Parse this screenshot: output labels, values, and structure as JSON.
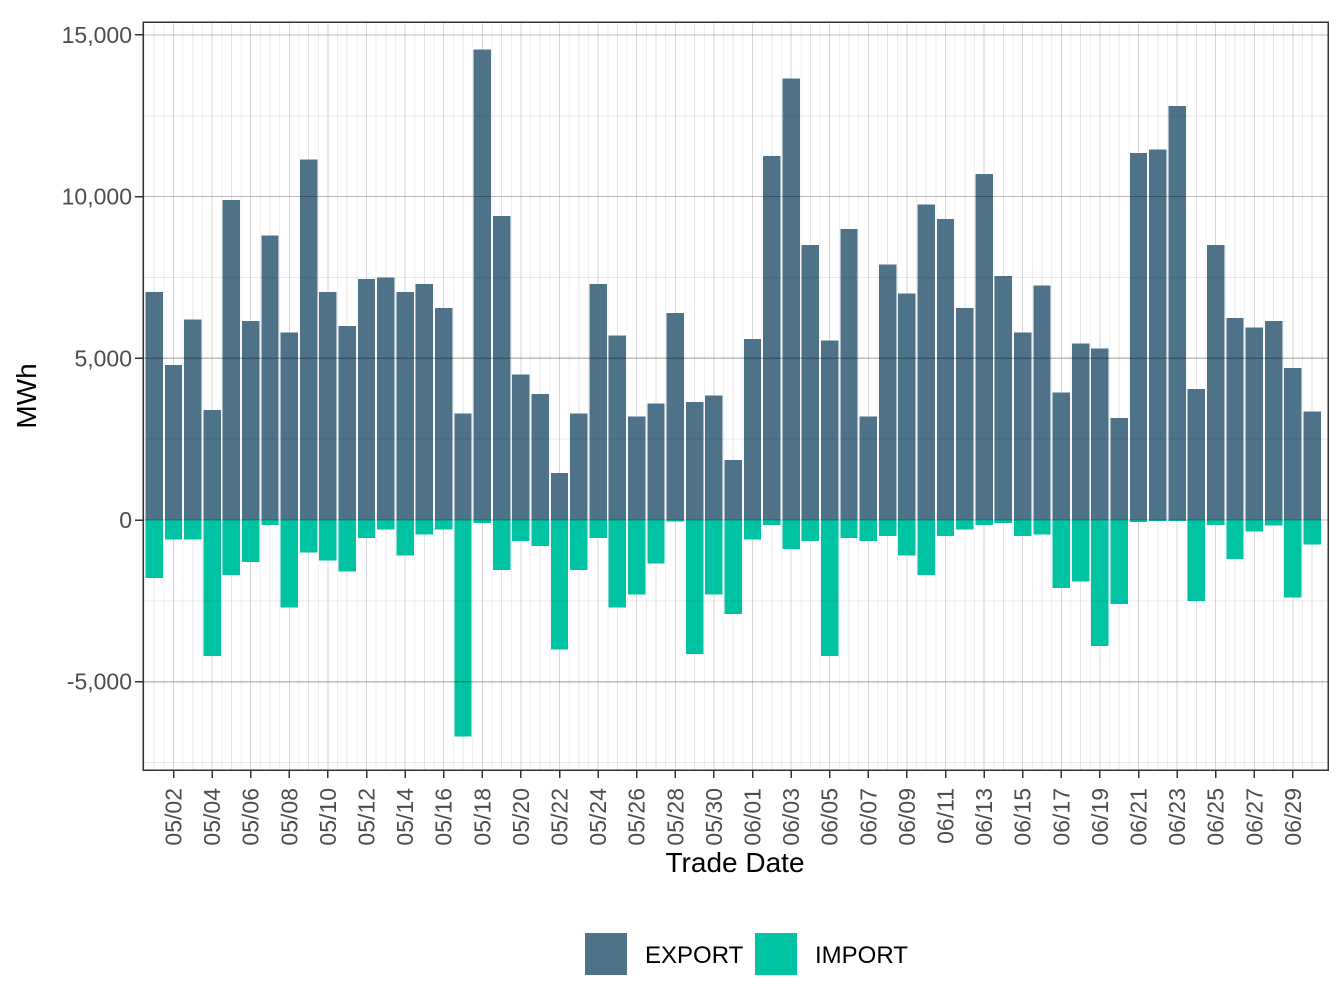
{
  "chart_data": {
    "type": "bar",
    "title": "",
    "xlabel": "Trade Date",
    "ylabel": "MWh",
    "grid": true,
    "legend_position": "bottom",
    "legend": [
      {
        "name": "EXPORT",
        "color": "#4E7389"
      },
      {
        "name": "IMPORT",
        "color": "#00C3A4"
      }
    ],
    "categories": [
      "05/01",
      "05/02",
      "05/03",
      "05/04",
      "05/05",
      "05/06",
      "05/07",
      "05/08",
      "05/09",
      "05/10",
      "05/11",
      "05/12",
      "05/13",
      "05/14",
      "05/15",
      "05/16",
      "05/17",
      "05/18",
      "05/19",
      "05/20",
      "05/21",
      "05/22",
      "05/23",
      "05/24",
      "05/25",
      "05/26",
      "05/27",
      "05/28",
      "05/29",
      "05/30",
      "05/31",
      "06/01",
      "06/02",
      "06/03",
      "06/04",
      "06/05",
      "06/06",
      "06/07",
      "06/08",
      "06/09",
      "06/10",
      "06/11",
      "06/12",
      "06/13",
      "06/14",
      "06/15",
      "06/16",
      "06/17",
      "06/18",
      "06/19",
      "06/20",
      "06/21",
      "06/22",
      "06/23",
      "06/24",
      "06/25",
      "06/26",
      "06/27",
      "06/28",
      "06/29",
      "06/30"
    ],
    "x_tick_labels_shown": [
      "05/02",
      "05/04",
      "05/06",
      "05/08",
      "05/10",
      "05/12",
      "05/14",
      "05/16",
      "05/18",
      "05/20",
      "05/22",
      "05/24",
      "05/26",
      "05/28",
      "05/30",
      "06/01",
      "06/03",
      "06/05",
      "06/07",
      "06/09",
      "06/11",
      "06/13",
      "06/15",
      "06/17",
      "06/19",
      "06/21",
      "06/23",
      "06/25",
      "06/27",
      "06/29"
    ],
    "x_tick_every": 2,
    "series": [
      {
        "name": "EXPORT",
        "values": [
          7050,
          4800,
          6200,
          3400,
          9900,
          6150,
          8800,
          5800,
          11150,
          7050,
          6000,
          7450,
          7500,
          7050,
          7300,
          6550,
          3300,
          14550,
          9400,
          4500,
          3900,
          1450,
          3300,
          7300,
          5700,
          3200,
          3600,
          6400,
          3650,
          3850,
          1850,
          5600,
          11250,
          13650,
          8500,
          5550,
          9000,
          3200,
          7900,
          7000,
          9750,
          9300,
          6550,
          10700,
          7550,
          5800,
          7250,
          3950,
          5450,
          5300,
          3150,
          11350,
          11450,
          12800,
          4050,
          8500,
          6250,
          5950,
          6150,
          4700,
          3350
        ]
      },
      {
        "name": "IMPORT",
        "values": [
          -1800,
          -600,
          -600,
          -4200,
          -1700,
          -1300,
          -150,
          -2700,
          -1000,
          -1250,
          -1600,
          -550,
          -300,
          -1100,
          -450,
          -300,
          -6700,
          -100,
          -1550,
          -650,
          -800,
          -4000,
          -1550,
          -550,
          -2700,
          -2300,
          -1350,
          -50,
          -4150,
          -2300,
          -2900,
          -600,
          -150,
          -900,
          -650,
          -4200,
          -550,
          -650,
          -500,
          -1100,
          -1700,
          -500,
          -300,
          -150,
          -100,
          -500,
          -450,
          -2100,
          -1900,
          -3900,
          -2600,
          -60,
          -30,
          -30,
          -2500,
          -150,
          -1200,
          -350,
          -175,
          -2400,
          -750
        ]
      }
    ],
    "y_ticks": [
      -5000,
      0,
      5000,
      10000,
      15000
    ],
    "y_tick_labels": [
      "-5,000",
      "0",
      "5,000",
      "10,000",
      "15,000"
    ],
    "y_minor_ticks": [
      -7500,
      -2500,
      2500,
      7500,
      12500
    ],
    "ylim": [
      -7730,
      15400
    ]
  },
  "style": {
    "background": "#ffffff",
    "panel_border": "#333333",
    "tick_color": "#333333",
    "tick_label_color": "#4d4d4d",
    "axis_title_color": "#000000",
    "grid_major": "rgba(0,0,0,0.26)",
    "grid_minor": "rgba(0,0,0,0.08)",
    "grid_vert_major": "#d6d6d6",
    "grid_vert_minor": "#e4e4e4",
    "grid_vert_mid": "#f0f0f0"
  }
}
